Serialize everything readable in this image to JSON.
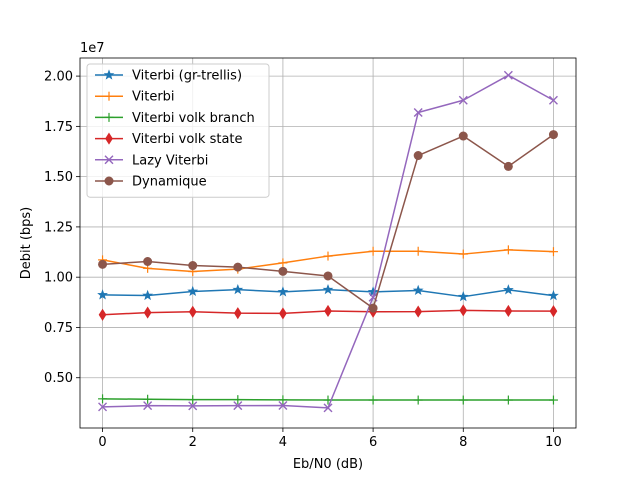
{
  "chart_data": {
    "type": "line",
    "title": "",
    "xlabel": "Eb/N0 (dB)",
    "ylabel": "Debit (bps)",
    "x": [
      0,
      1,
      2,
      3,
      4,
      5,
      6,
      7,
      8,
      9,
      10
    ],
    "xlim": [
      -0.5,
      10.5
    ],
    "ylim": [
      0.25,
      2.09
    ],
    "y_scale_note": "1e7",
    "x_ticks": [
      0,
      2,
      4,
      6,
      8,
      10
    ],
    "y_ticks": [
      0.5,
      0.75,
      1.0,
      1.25,
      1.5,
      1.75,
      2.0
    ],
    "x_tick_labels": [
      "0",
      "2",
      "4",
      "6",
      "8",
      "10"
    ],
    "y_tick_labels": [
      "0.50",
      "0.75",
      "1.00",
      "1.25",
      "1.50",
      "1.75",
      "2.00"
    ],
    "grid": true,
    "legend_position": "top-left",
    "series": [
      {
        "name": "Viterbi (gr-trellis)",
        "color": "#1f77b4",
        "marker": "star",
        "values": [
          0.912,
          0.909,
          0.929,
          0.938,
          0.927,
          0.938,
          0.927,
          0.934,
          0.903,
          0.937,
          0.908
        ]
      },
      {
        "name": "Viterbi",
        "color": "#ff7f0e",
        "marker": "tri-plus",
        "values": [
          1.086,
          1.044,
          1.028,
          1.04,
          1.071,
          1.105,
          1.129,
          1.129,
          1.115,
          1.136,
          1.127
        ]
      },
      {
        "name": "Viterbi volk branch",
        "color": "#2ca02c",
        "marker": "tri-plus",
        "values": [
          0.395,
          0.393,
          0.391,
          0.391,
          0.39,
          0.389,
          0.389,
          0.389,
          0.389,
          0.389,
          0.389
        ]
      },
      {
        "name": "Viterbi volk state",
        "color": "#d62728",
        "marker": "diamond",
        "values": [
          0.813,
          0.824,
          0.828,
          0.821,
          0.82,
          0.832,
          0.828,
          0.829,
          0.835,
          0.832,
          0.831
        ]
      },
      {
        "name": "Lazy Viterbi",
        "color": "#9467bd",
        "marker": "x",
        "values": [
          0.355,
          0.361,
          0.36,
          0.361,
          0.362,
          0.35,
          0.9,
          1.819,
          1.88,
          2.004,
          1.88
        ]
      },
      {
        "name": "Dynamique",
        "color": "#8c564b",
        "marker": "circle",
        "values": [
          1.064,
          1.078,
          1.058,
          1.05,
          1.029,
          1.006,
          0.846,
          1.605,
          1.702,
          1.551,
          1.709
        ]
      }
    ]
  }
}
